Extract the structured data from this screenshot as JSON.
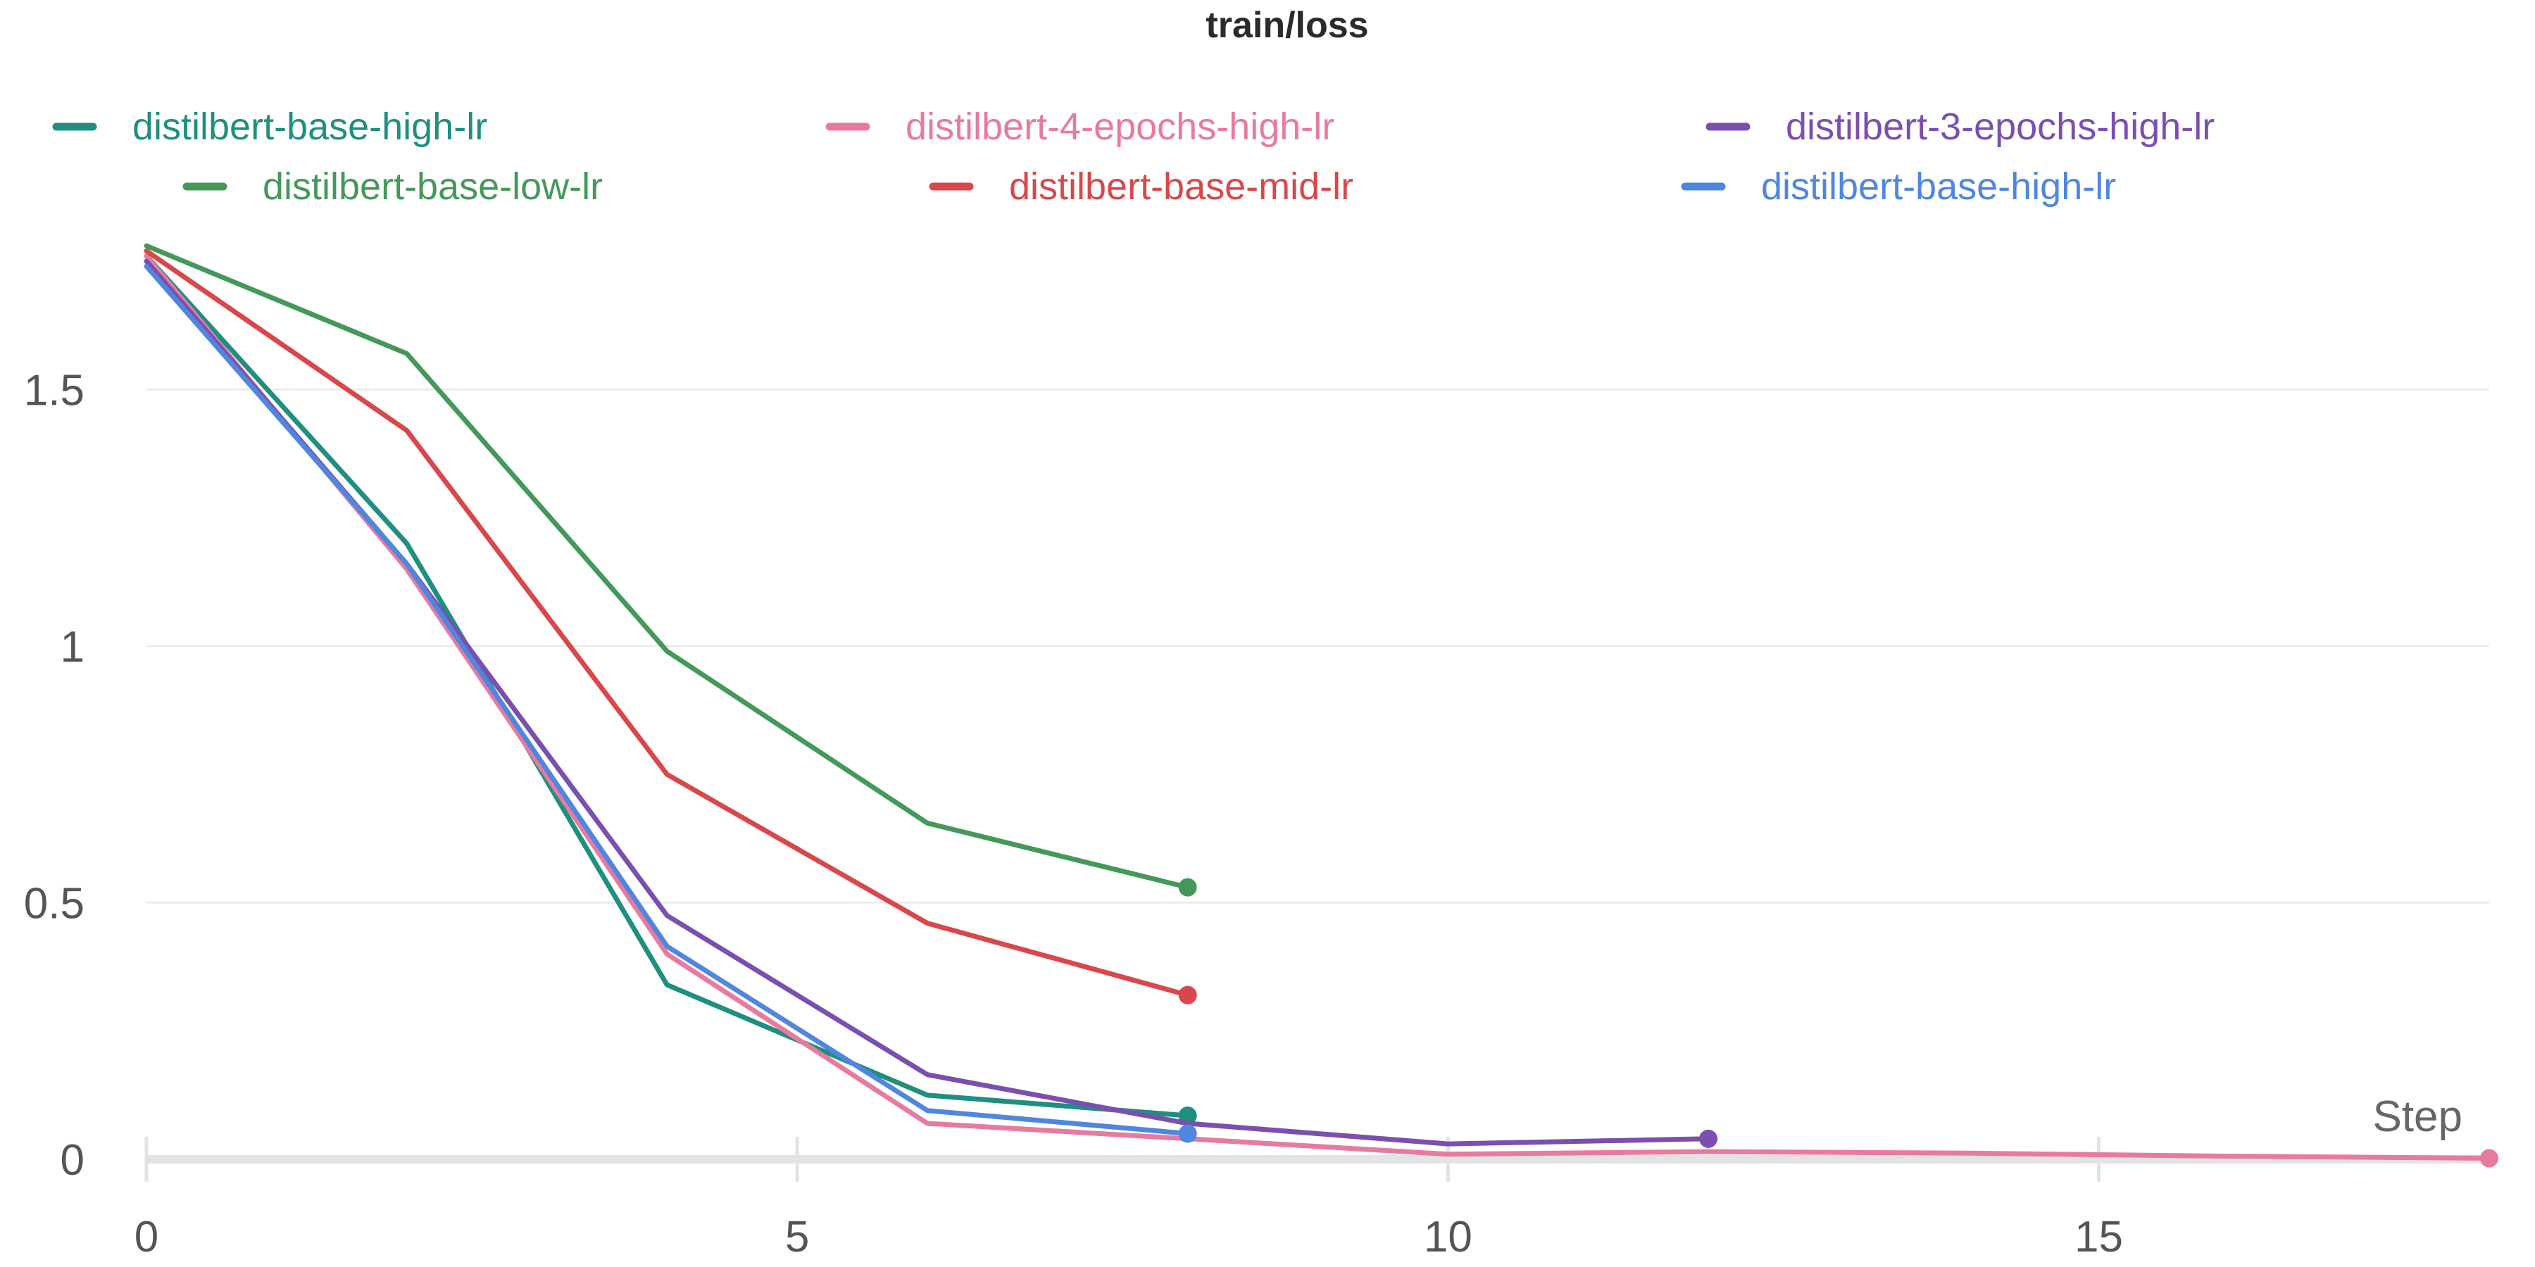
{
  "chart_data": {
    "type": "line",
    "title": "train/loss",
    "xlabel": "Step",
    "ylabel": "",
    "xlim": [
      0,
      18
    ],
    "ylim": [
      0,
      1.82
    ],
    "xticks": [
      "0",
      "5",
      "10",
      "15"
    ],
    "yticks": [
      "0",
      "0.5",
      "1",
      "1.5"
    ],
    "grid": true,
    "legend_position": "top",
    "series": [
      {
        "name": "distilbert-base-high-lr",
        "color": "#1f8f7f",
        "x": [
          0,
          2,
          4,
          6,
          8
        ],
        "y": [
          1.76,
          1.2,
          0.34,
          0.125,
          0.085
        ]
      },
      {
        "name": "distilbert-4-epochs-high-lr",
        "color": "#e87aa0",
        "x": [
          0,
          2,
          4,
          6,
          8,
          10,
          12,
          14,
          16,
          18
        ],
        "y": [
          1.76,
          1.15,
          0.4,
          0.07,
          0.04,
          0.01,
          0.015,
          0.012,
          0.006,
          0.002
        ]
      },
      {
        "name": "distilbert-3-epochs-high-lr",
        "color": "#7b4fb0",
        "x": [
          0,
          2,
          4,
          6,
          8,
          10,
          12
        ],
        "y": [
          1.75,
          1.16,
          0.475,
          0.165,
          0.07,
          0.03,
          0.04
        ]
      },
      {
        "name": "distilbert-base-low-lr",
        "color": "#44995a",
        "x": [
          0,
          2,
          4,
          6,
          8
        ],
        "y": [
          1.78,
          1.57,
          0.99,
          0.655,
          0.53
        ]
      },
      {
        "name": "distilbert-base-mid-lr",
        "color": "#d9474a",
        "x": [
          0,
          2,
          4,
          6,
          8
        ],
        "y": [
          1.77,
          1.42,
          0.75,
          0.46,
          0.32
        ]
      },
      {
        "name": "distilbert-base-high-lr",
        "color": "#4f86e0",
        "x": [
          0,
          2,
          4,
          6,
          8
        ],
        "y": [
          1.74,
          1.16,
          0.415,
          0.095,
          0.05
        ]
      }
    ]
  }
}
